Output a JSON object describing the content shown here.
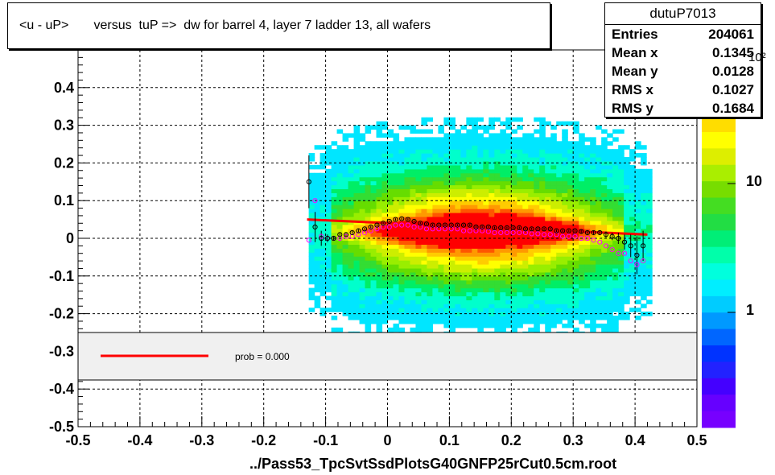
{
  "title": "<u - uP>       versus  tuP =>  dw for barrel 4, layer 7 ladder 13, all wafers",
  "footer": "../Pass53_TpcSvtSsdPlotsG40GNFP25rCut0.5cm.root",
  "stats": {
    "name": "dutuP7013",
    "rows": [
      {
        "label": "Entries",
        "value": "204061"
      },
      {
        "label": "Mean x",
        "value": "0.1345"
      },
      {
        "label": "Mean y",
        "value": "0.0128"
      },
      {
        "label": "RMS x",
        "value": "0.1027"
      },
      {
        "label": "RMS y",
        "value": "0.1684"
      }
    ]
  },
  "legend": {
    "text": "prob = 0.000",
    "line_color": "#ff0000"
  },
  "palette": {
    "labels": [
      {
        "text": "10",
        "value": 10
      },
      {
        "text": "1",
        "value": 1
      }
    ],
    "top_label": "10²"
  },
  "chart_data": {
    "type": "heatmap",
    "title": "<u - uP>       versus  tuP =>  dw for barrel 4, layer 7 ladder 13, all wafers",
    "xlabel": "../Pass53_TpcSvtSsdPlotsG40GNFP25rCut0.5cm.root",
    "ylabel": "",
    "xlim": [
      -0.5,
      0.5
    ],
    "ylim": [
      -0.5,
      0.5
    ],
    "x_ticks": [
      "-0.5",
      "-0.4",
      "-0.3",
      "-0.2",
      "-0.1",
      "0",
      "0.1",
      "0.2",
      "0.3",
      "0.4",
      "0.5"
    ],
    "y_ticks": [
      "-0.5",
      "-0.4",
      "-0.3",
      "-0.2",
      "-0.1",
      "0",
      "0.1",
      "0.2",
      "0.3",
      "0.4"
    ],
    "grid": true,
    "z_scale": "log",
    "fit_line": {
      "x": [
        -0.13,
        0.42
      ],
      "y": [
        0.05,
        0.01
      ],
      "color": "#ff0000"
    },
    "profile_mean": {
      "color": "#000000",
      "x": [
        -0.127,
        -0.117,
        -0.107,
        -0.097,
        -0.087,
        -0.077,
        -0.067,
        -0.057,
        -0.047,
        -0.037,
        -0.027,
        -0.017,
        -0.007,
        0.003,
        0.013,
        0.023,
        0.033,
        0.043,
        0.053,
        0.063,
        0.073,
        0.083,
        0.093,
        0.103,
        0.113,
        0.123,
        0.133,
        0.143,
        0.153,
        0.163,
        0.173,
        0.183,
        0.193,
        0.203,
        0.213,
        0.223,
        0.233,
        0.243,
        0.253,
        0.263,
        0.273,
        0.283,
        0.293,
        0.303,
        0.313,
        0.323,
        0.333,
        0.343,
        0.353,
        0.363,
        0.373,
        0.383,
        0.393,
        0.403,
        0.413
      ],
      "y": [
        0.15,
        0.03,
        0.0,
        0.0,
        0.0,
        0.01,
        0.01,
        0.015,
        0.02,
        0.025,
        0.03,
        0.035,
        0.04,
        0.045,
        0.05,
        0.052,
        0.05,
        0.045,
        0.04,
        0.038,
        0.035,
        0.035,
        0.035,
        0.035,
        0.035,
        0.035,
        0.035,
        0.03,
        0.03,
        0.03,
        0.028,
        0.028,
        0.028,
        0.028,
        0.028,
        0.025,
        0.025,
        0.025,
        0.025,
        0.025,
        0.02,
        0.02,
        0.02,
        0.02,
        0.018,
        0.015,
        0.015,
        0.015,
        0.01,
        0.005,
        0.0,
        -0.01,
        -0.02,
        -0.045,
        -0.02
      ],
      "err": [
        0.07,
        0.04,
        0.02,
        0.01,
        0.005,
        0.004,
        0.004,
        0.004,
        0.004,
        0.003,
        0.003,
        0.003,
        0.003,
        0.003,
        0.003,
        0.003,
        0.003,
        0.003,
        0.003,
        0.003,
        0.003,
        0.003,
        0.003,
        0.003,
        0.003,
        0.003,
        0.003,
        0.003,
        0.003,
        0.003,
        0.003,
        0.003,
        0.003,
        0.003,
        0.003,
        0.003,
        0.003,
        0.003,
        0.003,
        0.003,
        0.003,
        0.003,
        0.003,
        0.003,
        0.004,
        0.004,
        0.005,
        0.006,
        0.008,
        0.01,
        0.015,
        0.02,
        0.03,
        0.05,
        0.04
      ]
    },
    "profile_median": {
      "color": "#ff00ff",
      "x": [
        -0.127,
        -0.117,
        -0.107,
        -0.097,
        -0.087,
        -0.077,
        -0.067,
        -0.057,
        -0.047,
        -0.037,
        -0.027,
        -0.017,
        -0.007,
        0.003,
        0.013,
        0.023,
        0.033,
        0.043,
        0.053,
        0.063,
        0.073,
        0.083,
        0.093,
        0.103,
        0.113,
        0.123,
        0.133,
        0.143,
        0.153,
        0.163,
        0.173,
        0.183,
        0.193,
        0.203,
        0.213,
        0.223,
        0.233,
        0.243,
        0.253,
        0.263,
        0.273,
        0.283,
        0.293,
        0.303,
        0.313,
        0.323,
        0.333,
        0.343,
        0.353,
        0.363,
        0.373,
        0.383,
        0.393,
        0.403,
        0.413
      ],
      "y": [
        -0.005,
        0.1,
        0.005,
        0.0,
        0.0,
        0.0,
        0.005,
        0.005,
        0.01,
        0.015,
        0.02,
        0.025,
        0.03,
        0.03,
        0.035,
        0.035,
        0.035,
        0.03,
        0.03,
        0.025,
        0.025,
        0.025,
        0.025,
        0.025,
        0.025,
        0.02,
        0.02,
        0.02,
        0.02,
        0.018,
        0.015,
        0.015,
        0.015,
        0.015,
        0.015,
        0.015,
        0.012,
        0.012,
        0.01,
        0.01,
        0.01,
        0.005,
        0.005,
        0.005,
        0.0,
        0.0,
        -0.005,
        -0.01,
        -0.02,
        -0.03,
        -0.04,
        -0.04,
        -0.06,
        -0.07,
        -0.06
      ]
    }
  }
}
